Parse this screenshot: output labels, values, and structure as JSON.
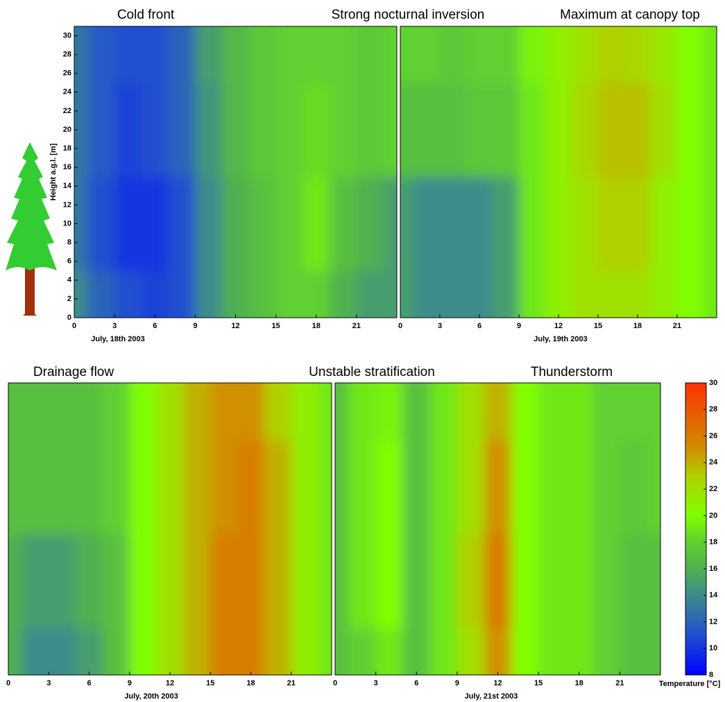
{
  "chart_data": [
    {
      "type": "contour",
      "title": "Cold front",
      "xlabel": "July, 18th 2003",
      "ylabel": "Height a.g.l. [m]",
      "x": [
        0,
        2,
        4,
        6,
        8,
        10,
        12,
        14,
        16,
        18,
        20,
        22,
        24
      ],
      "y": [
        0,
        10,
        20,
        30
      ],
      "z": [
        [
          14,
          12,
          11,
          10.5,
          11,
          14,
          16,
          17,
          18,
          18,
          16,
          15,
          15
        ],
        [
          13,
          11,
          10,
          10,
          11,
          14,
          16,
          17,
          18,
          19,
          17,
          16,
          15
        ],
        [
          13,
          11.5,
          10.5,
          11,
          12,
          14.5,
          16.5,
          17.5,
          18,
          18.5,
          18,
          17.5,
          18
        ],
        [
          13,
          11.5,
          11,
          11,
          12,
          15,
          16.5,
          17.5,
          18,
          18,
          18,
          17.5,
          18
        ]
      ],
      "xlim": [
        0,
        24
      ],
      "xticks": [
        0,
        3,
        6,
        9,
        12,
        15,
        18,
        21
      ],
      "ylim": [
        0,
        31
      ],
      "yticks": [
        0,
        2,
        4,
        6,
        8,
        10,
        12,
        14,
        16,
        18,
        20,
        22,
        24,
        26,
        28,
        30
      ]
    },
    {
      "type": "contour",
      "title": "Strong nocturnal inversion",
      "xlabel": "July, 19th 2003",
      "x": [
        0,
        2,
        4,
        6,
        8,
        10,
        12,
        14,
        16,
        18,
        20,
        22,
        24
      ],
      "y": [
        0,
        10,
        20,
        30
      ],
      "z": [
        [
          15,
          14,
          14,
          14,
          15,
          19,
          21,
          22,
          22,
          22,
          21,
          20,
          19
        ],
        [
          15,
          14,
          14,
          14,
          15,
          19,
          21,
          22,
          23,
          23,
          21,
          20,
          19
        ],
        [
          17,
          17,
          17,
          17.5,
          17.5,
          19,
          21,
          22.5,
          23.5,
          23.5,
          22,
          20,
          19
        ],
        [
          18,
          18,
          17.5,
          18,
          18,
          19.5,
          21,
          22,
          23,
          22.5,
          21.5,
          20,
          19
        ]
      ],
      "xlim": [
        0,
        24
      ],
      "xticks": [
        0,
        3,
        6,
        9,
        12,
        15,
        18,
        21
      ],
      "ylim": [
        0,
        31
      ]
    },
    {
      "type": "contour",
      "title": "Maximum at canopy top"
    },
    {
      "type": "contour",
      "title": "Drainage flow",
      "xlabel": "July, 20th 2003",
      "x": [
        0,
        2,
        4,
        6,
        8,
        10,
        12,
        14,
        16,
        18,
        20,
        22,
        24
      ],
      "y": [
        0,
        10,
        20,
        30
      ],
      "z": [
        [
          16,
          14,
          14,
          15,
          17,
          20,
          22,
          24,
          26,
          26,
          24,
          21,
          19
        ],
        [
          16,
          15,
          15,
          16,
          17,
          20,
          22,
          24,
          26,
          26,
          24,
          21,
          19
        ],
        [
          17,
          17,
          17,
          17,
          18,
          20,
          22,
          24,
          25,
          26,
          24,
          21,
          19
        ],
        [
          17,
          17,
          17,
          17,
          18,
          20,
          22,
          24,
          25,
          25,
          23,
          21,
          19
        ]
      ],
      "xlim": [
        0,
        24
      ],
      "xticks": [
        0,
        3,
        6,
        9,
        12,
        15,
        18,
        21
      ],
      "ylim": [
        0,
        31
      ]
    },
    {
      "type": "contour",
      "title": "Unstable stratification",
      "xlabel": "July, 21st 2003",
      "x": [
        0,
        2,
        4,
        6,
        8,
        10,
        12,
        14,
        16,
        18,
        20,
        22,
        24
      ],
      "y": [
        0,
        10,
        20,
        30
      ],
      "z": [
        [
          17,
          18,
          19,
          17,
          19,
          22,
          25,
          20,
          19,
          19,
          18,
          17,
          17
        ],
        [
          17,
          19,
          20,
          17,
          19,
          23,
          26,
          20,
          19,
          19,
          18,
          17,
          17
        ],
        [
          17,
          19,
          20,
          17,
          19,
          22,
          25,
          20,
          19,
          19,
          18,
          17.5,
          18
        ],
        [
          17,
          19,
          19.5,
          17,
          19,
          22,
          24,
          20,
          19,
          19,
          18,
          18,
          18
        ]
      ],
      "xlim": [
        0,
        24
      ],
      "xticks": [
        0,
        3,
        6,
        9,
        12,
        15,
        18,
        21
      ],
      "ylim": [
        0,
        31
      ]
    },
    {
      "type": "contour",
      "title": "Thunderstorm"
    }
  ],
  "colorbar": {
    "label": "Temperature [°C]",
    "lim": [
      8,
      30
    ],
    "ticks": [
      8,
      10,
      12,
      14,
      16,
      18,
      20,
      22,
      24,
      26,
      28,
      30
    ],
    "colorscale": [
      {
        "value": 8,
        "color": "#0000ff"
      },
      {
        "value": 11,
        "color": "#2050d0"
      },
      {
        "value": 14,
        "color": "#3c8c8c"
      },
      {
        "value": 16,
        "color": "#50b050"
      },
      {
        "value": 18,
        "color": "#60d030"
      },
      {
        "value": 20,
        "color": "#80ff00"
      },
      {
        "value": 23,
        "color": "#b0d000"
      },
      {
        "value": 25,
        "color": "#d09000"
      },
      {
        "value": 27,
        "color": "#e06a00"
      },
      {
        "value": 30,
        "color": "#ff3000"
      }
    ]
  }
}
